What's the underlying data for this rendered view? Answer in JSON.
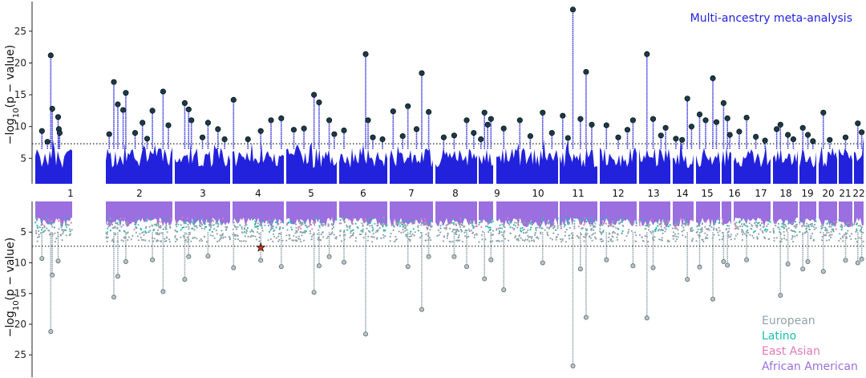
{
  "chart_data": [
    {
      "type": "scatter",
      "panel": "top",
      "title": "Multi-ancestry meta-analysis",
      "ylabel": "−log₁₀(p − value)",
      "ylabel_parts": [
        "−log",
        "10",
        "(p − value)"
      ],
      "yticks": [
        "5",
        "10",
        "15",
        "20",
        "25"
      ],
      "ylim": [
        1,
        29
      ],
      "threshold": 7.3,
      "chromosomes": [
        "1",
        "2",
        "3",
        "4",
        "5",
        "6",
        "7",
        "8",
        "9",
        "10",
        "11",
        "12",
        "13",
        "14",
        "15",
        "16",
        "17",
        "18",
        "19",
        "20",
        "21",
        "22"
      ],
      "grid": false,
      "color": "#2222dd",
      "leadColor": "#1c3a44",
      "lead_snps": [
        {
          "chrom": "1",
          "pos": 0.18,
          "y": 9.3
        },
        {
          "chrom": "1",
          "pos": 0.42,
          "y": 21.2
        },
        {
          "chrom": "1",
          "pos": 0.46,
          "y": 12.8
        },
        {
          "chrom": "1",
          "pos": 0.62,
          "y": 11.5
        },
        {
          "chrom": "1",
          "pos": 0.64,
          "y": 9.6
        },
        {
          "chrom": "1",
          "pos": 0.66,
          "y": 9.0
        },
        {
          "chrom": "1",
          "pos": 0.33,
          "y": 7.6
        },
        {
          "chrom": "2",
          "pos": 0.05,
          "y": 8.8
        },
        {
          "chrom": "2",
          "pos": 0.12,
          "y": 17.0
        },
        {
          "chrom": "2",
          "pos": 0.18,
          "y": 13.5
        },
        {
          "chrom": "2",
          "pos": 0.3,
          "y": 15.3
        },
        {
          "chrom": "2",
          "pos": 0.26,
          "y": 12.6
        },
        {
          "chrom": "2",
          "pos": 0.55,
          "y": 10.6
        },
        {
          "chrom": "2",
          "pos": 0.7,
          "y": 12.5
        },
        {
          "chrom": "2",
          "pos": 0.86,
          "y": 15.5
        },
        {
          "chrom": "2",
          "pos": 0.94,
          "y": 10.2
        },
        {
          "chrom": "2",
          "pos": 0.44,
          "y": 9.0
        },
        {
          "chrom": "2",
          "pos": 0.62,
          "y": 8.1
        },
        {
          "chrom": "3",
          "pos": 0.18,
          "y": 13.7
        },
        {
          "chrom": "3",
          "pos": 0.25,
          "y": 12.7
        },
        {
          "chrom": "3",
          "pos": 0.3,
          "y": 11.0
        },
        {
          "chrom": "3",
          "pos": 0.6,
          "y": 10.6
        },
        {
          "chrom": "3",
          "pos": 0.78,
          "y": 9.6
        },
        {
          "chrom": "3",
          "pos": 0.5,
          "y": 8.3
        },
        {
          "chrom": "3",
          "pos": 0.9,
          "y": 8.0
        },
        {
          "chrom": "4",
          "pos": 0.02,
          "y": 14.2
        },
        {
          "chrom": "4",
          "pos": 0.3,
          "y": 8.0
        },
        {
          "chrom": "4",
          "pos": 0.55,
          "y": 9.3
        },
        {
          "chrom": "4",
          "pos": 0.75,
          "y": 11.0
        },
        {
          "chrom": "4",
          "pos": 0.95,
          "y": 11.3
        },
        {
          "chrom": "5",
          "pos": 0.15,
          "y": 9.5
        },
        {
          "chrom": "5",
          "pos": 0.35,
          "y": 9.7
        },
        {
          "chrom": "5",
          "pos": 0.55,
          "y": 15.0
        },
        {
          "chrom": "5",
          "pos": 0.65,
          "y": 13.8
        },
        {
          "chrom": "5",
          "pos": 0.85,
          "y": 11.0
        },
        {
          "chrom": "5",
          "pos": 0.95,
          "y": 8.8
        },
        {
          "chrom": "6",
          "pos": 0.1,
          "y": 9.4
        },
        {
          "chrom": "6",
          "pos": 0.55,
          "y": 21.4
        },
        {
          "chrom": "6",
          "pos": 0.6,
          "y": 11.0
        },
        {
          "chrom": "6",
          "pos": 0.7,
          "y": 8.3
        },
        {
          "chrom": "6",
          "pos": 0.9,
          "y": 8.0
        },
        {
          "chrom": "7",
          "pos": 0.08,
          "y": 12.4
        },
        {
          "chrom": "7",
          "pos": 0.3,
          "y": 8.5
        },
        {
          "chrom": "7",
          "pos": 0.42,
          "y": 13.2
        },
        {
          "chrom": "7",
          "pos": 0.62,
          "y": 9.6
        },
        {
          "chrom": "7",
          "pos": 0.74,
          "y": 18.4
        },
        {
          "chrom": "7",
          "pos": 0.9,
          "y": 12.3
        },
        {
          "chrom": "8",
          "pos": 0.2,
          "y": 8.3
        },
        {
          "chrom": "8",
          "pos": 0.45,
          "y": 8.6
        },
        {
          "chrom": "8",
          "pos": 0.75,
          "y": 11.0
        },
        {
          "chrom": "8",
          "pos": 0.92,
          "y": 9.0
        },
        {
          "chrom": "9",
          "pos": 0.15,
          "y": 8.0
        },
        {
          "chrom": "9",
          "pos": 0.4,
          "y": 12.2
        },
        {
          "chrom": "9",
          "pos": 0.62,
          "y": 10.3
        },
        {
          "chrom": "9",
          "pos": 0.85,
          "y": 11.2
        },
        {
          "chrom": "10",
          "pos": 0.12,
          "y": 9.7
        },
        {
          "chrom": "10",
          "pos": 0.38,
          "y": 11.0
        },
        {
          "chrom": "10",
          "pos": 0.55,
          "y": 8.5
        },
        {
          "chrom": "10",
          "pos": 0.75,
          "y": 12.2
        },
        {
          "chrom": "10",
          "pos": 0.9,
          "y": 9.0
        },
        {
          "chrom": "11",
          "pos": 0.08,
          "y": 11.7
        },
        {
          "chrom": "11",
          "pos": 0.22,
          "y": 8.2
        },
        {
          "chrom": "11",
          "pos": 0.35,
          "y": 28.4
        },
        {
          "chrom": "11",
          "pos": 0.55,
          "y": 11.2
        },
        {
          "chrom": "11",
          "pos": 0.7,
          "y": 18.6
        },
        {
          "chrom": "11",
          "pos": 0.85,
          "y": 10.3
        },
        {
          "chrom": "12",
          "pos": 0.18,
          "y": 10.2
        },
        {
          "chrom": "12",
          "pos": 0.5,
          "y": 8.3
        },
        {
          "chrom": "12",
          "pos": 0.75,
          "y": 9.5
        },
        {
          "chrom": "12",
          "pos": 0.9,
          "y": 11.0
        },
        {
          "chrom": "13",
          "pos": 0.25,
          "y": 21.4
        },
        {
          "chrom": "13",
          "pos": 0.45,
          "y": 11.2
        },
        {
          "chrom": "13",
          "pos": 0.7,
          "y": 8.6
        },
        {
          "chrom": "13",
          "pos": 0.85,
          "y": 9.8
        },
        {
          "chrom": "14",
          "pos": 0.15,
          "y": 8.1
        },
        {
          "chrom": "14",
          "pos": 0.45,
          "y": 7.9
        },
        {
          "chrom": "14",
          "pos": 0.7,
          "y": 14.4
        },
        {
          "chrom": "14",
          "pos": 0.9,
          "y": 10.0
        },
        {
          "chrom": "15",
          "pos": 0.15,
          "y": 11.9
        },
        {
          "chrom": "15",
          "pos": 0.4,
          "y": 11.0
        },
        {
          "chrom": "15",
          "pos": 0.7,
          "y": 17.6
        },
        {
          "chrom": "15",
          "pos": 0.85,
          "y": 10.7
        },
        {
          "chrom": "16",
          "pos": 0.2,
          "y": 13.7
        },
        {
          "chrom": "16",
          "pos": 0.6,
          "y": 11.3
        },
        {
          "chrom": "16",
          "pos": 0.85,
          "y": 8.7
        },
        {
          "chrom": "17",
          "pos": 0.15,
          "y": 9.2
        },
        {
          "chrom": "17",
          "pos": 0.35,
          "y": 11.4
        },
        {
          "chrom": "17",
          "pos": 0.6,
          "y": 8.4
        },
        {
          "chrom": "17",
          "pos": 0.85,
          "y": 7.8
        },
        {
          "chrom": "18",
          "pos": 0.15,
          "y": 9.6
        },
        {
          "chrom": "18",
          "pos": 0.3,
          "y": 10.3
        },
        {
          "chrom": "18",
          "pos": 0.6,
          "y": 8.7
        },
        {
          "chrom": "18",
          "pos": 0.82,
          "y": 8.0
        },
        {
          "chrom": "19",
          "pos": 0.2,
          "y": 9.8
        },
        {
          "chrom": "19",
          "pos": 0.5,
          "y": 8.7
        },
        {
          "chrom": "19",
          "pos": 0.8,
          "y": 7.7
        },
        {
          "chrom": "20",
          "pos": 0.25,
          "y": 12.2
        },
        {
          "chrom": "20",
          "pos": 0.6,
          "y": 7.9
        },
        {
          "chrom": "21",
          "pos": 0.5,
          "y": 8.3
        },
        {
          "chrom": "22",
          "pos": 0.4,
          "y": 10.5
        },
        {
          "chrom": "22",
          "pos": 0.8,
          "y": 9.1
        }
      ]
    },
    {
      "type": "scatter",
      "panel": "bottom",
      "ylabel": "−log₁₀(p − value)",
      "ylabel_parts": [
        "−log",
        "10",
        "(p − value)"
      ],
      "yticks": [
        "5",
        "10",
        "15",
        "20",
        "25"
      ],
      "ylim": [
        28,
        0
      ],
      "threshold": 7.3,
      "grid": false,
      "legend_position": "bottom-right",
      "series": [
        {
          "name": "European",
          "color": "#8fa3ab"
        },
        {
          "name": "Latino",
          "color": "#1bbfb2"
        },
        {
          "name": "East Asian",
          "color": "#e07ab8"
        },
        {
          "name": "African American",
          "color": "#9b6fe0"
        }
      ],
      "highlight": {
        "chrom": "4",
        "pos": 0.55,
        "y": 7.5,
        "marker": "star",
        "color": "#c0392b"
      },
      "lead_snps": [
        {
          "chrom": "1",
          "pos": 0.42,
          "y": 21.2
        },
        {
          "chrom": "1",
          "pos": 0.46,
          "y": 12.0
        },
        {
          "chrom": "1",
          "pos": 0.62,
          "y": 9.7
        },
        {
          "chrom": "1",
          "pos": 0.18,
          "y": 9.3
        },
        {
          "chrom": "2",
          "pos": 0.12,
          "y": 15.6
        },
        {
          "chrom": "2",
          "pos": 0.18,
          "y": 12.2
        },
        {
          "chrom": "2",
          "pos": 0.3,
          "y": 9.8
        },
        {
          "chrom": "2",
          "pos": 0.7,
          "y": 9.5
        },
        {
          "chrom": "2",
          "pos": 0.86,
          "y": 14.7
        },
        {
          "chrom": "3",
          "pos": 0.18,
          "y": 12.7
        },
        {
          "chrom": "3",
          "pos": 0.25,
          "y": 9.0
        },
        {
          "chrom": "3",
          "pos": 0.6,
          "y": 8.9
        },
        {
          "chrom": "4",
          "pos": 0.02,
          "y": 10.8
        },
        {
          "chrom": "4",
          "pos": 0.55,
          "y": 9.6
        },
        {
          "chrom": "4",
          "pos": 0.95,
          "y": 10.6
        },
        {
          "chrom": "5",
          "pos": 0.55,
          "y": 14.8
        },
        {
          "chrom": "5",
          "pos": 0.65,
          "y": 10.5
        },
        {
          "chrom": "5",
          "pos": 0.85,
          "y": 9.0
        },
        {
          "chrom": "6",
          "pos": 0.55,
          "y": 21.6
        },
        {
          "chrom": "6",
          "pos": 0.1,
          "y": 9.9
        },
        {
          "chrom": "7",
          "pos": 0.74,
          "y": 17.6
        },
        {
          "chrom": "7",
          "pos": 0.42,
          "y": 10.6
        },
        {
          "chrom": "7",
          "pos": 0.9,
          "y": 9.0
        },
        {
          "chrom": "8",
          "pos": 0.75,
          "y": 10.6
        },
        {
          "chrom": "8",
          "pos": 0.45,
          "y": 9.0
        },
        {
          "chrom": "9",
          "pos": 0.4,
          "y": 12.6
        },
        {
          "chrom": "9",
          "pos": 0.85,
          "y": 9.5
        },
        {
          "chrom": "10",
          "pos": 0.12,
          "y": 14.4
        },
        {
          "chrom": "10",
          "pos": 0.75,
          "y": 10.0
        },
        {
          "chrom": "11",
          "pos": 0.35,
          "y": 26.8
        },
        {
          "chrom": "11",
          "pos": 0.7,
          "y": 18.9
        },
        {
          "chrom": "11",
          "pos": 0.55,
          "y": 11.0
        },
        {
          "chrom": "12",
          "pos": 0.18,
          "y": 9.5
        },
        {
          "chrom": "12",
          "pos": 0.9,
          "y": 10.5
        },
        {
          "chrom": "13",
          "pos": 0.25,
          "y": 19.0
        },
        {
          "chrom": "13",
          "pos": 0.45,
          "y": 10.8
        },
        {
          "chrom": "14",
          "pos": 0.7,
          "y": 12.7
        },
        {
          "chrom": "15",
          "pos": 0.7,
          "y": 15.9
        },
        {
          "chrom": "15",
          "pos": 0.15,
          "y": 10.7
        },
        {
          "chrom": "16",
          "pos": 0.2,
          "y": 9.8
        },
        {
          "chrom": "16",
          "pos": 0.6,
          "y": 10.4
        },
        {
          "chrom": "17",
          "pos": 0.35,
          "y": 9.5
        },
        {
          "chrom": "18",
          "pos": 0.3,
          "y": 15.3
        },
        {
          "chrom": "18",
          "pos": 0.6,
          "y": 10.2
        },
        {
          "chrom": "19",
          "pos": 0.2,
          "y": 11.0
        },
        {
          "chrom": "19",
          "pos": 0.5,
          "y": 9.8
        },
        {
          "chrom": "20",
          "pos": 0.25,
          "y": 11.4
        },
        {
          "chrom": "21",
          "pos": 0.5,
          "y": 9.6
        },
        {
          "chrom": "22",
          "pos": 0.4,
          "y": 10.0
        },
        {
          "chrom": "22",
          "pos": 0.8,
          "y": 9.4
        }
      ]
    }
  ]
}
